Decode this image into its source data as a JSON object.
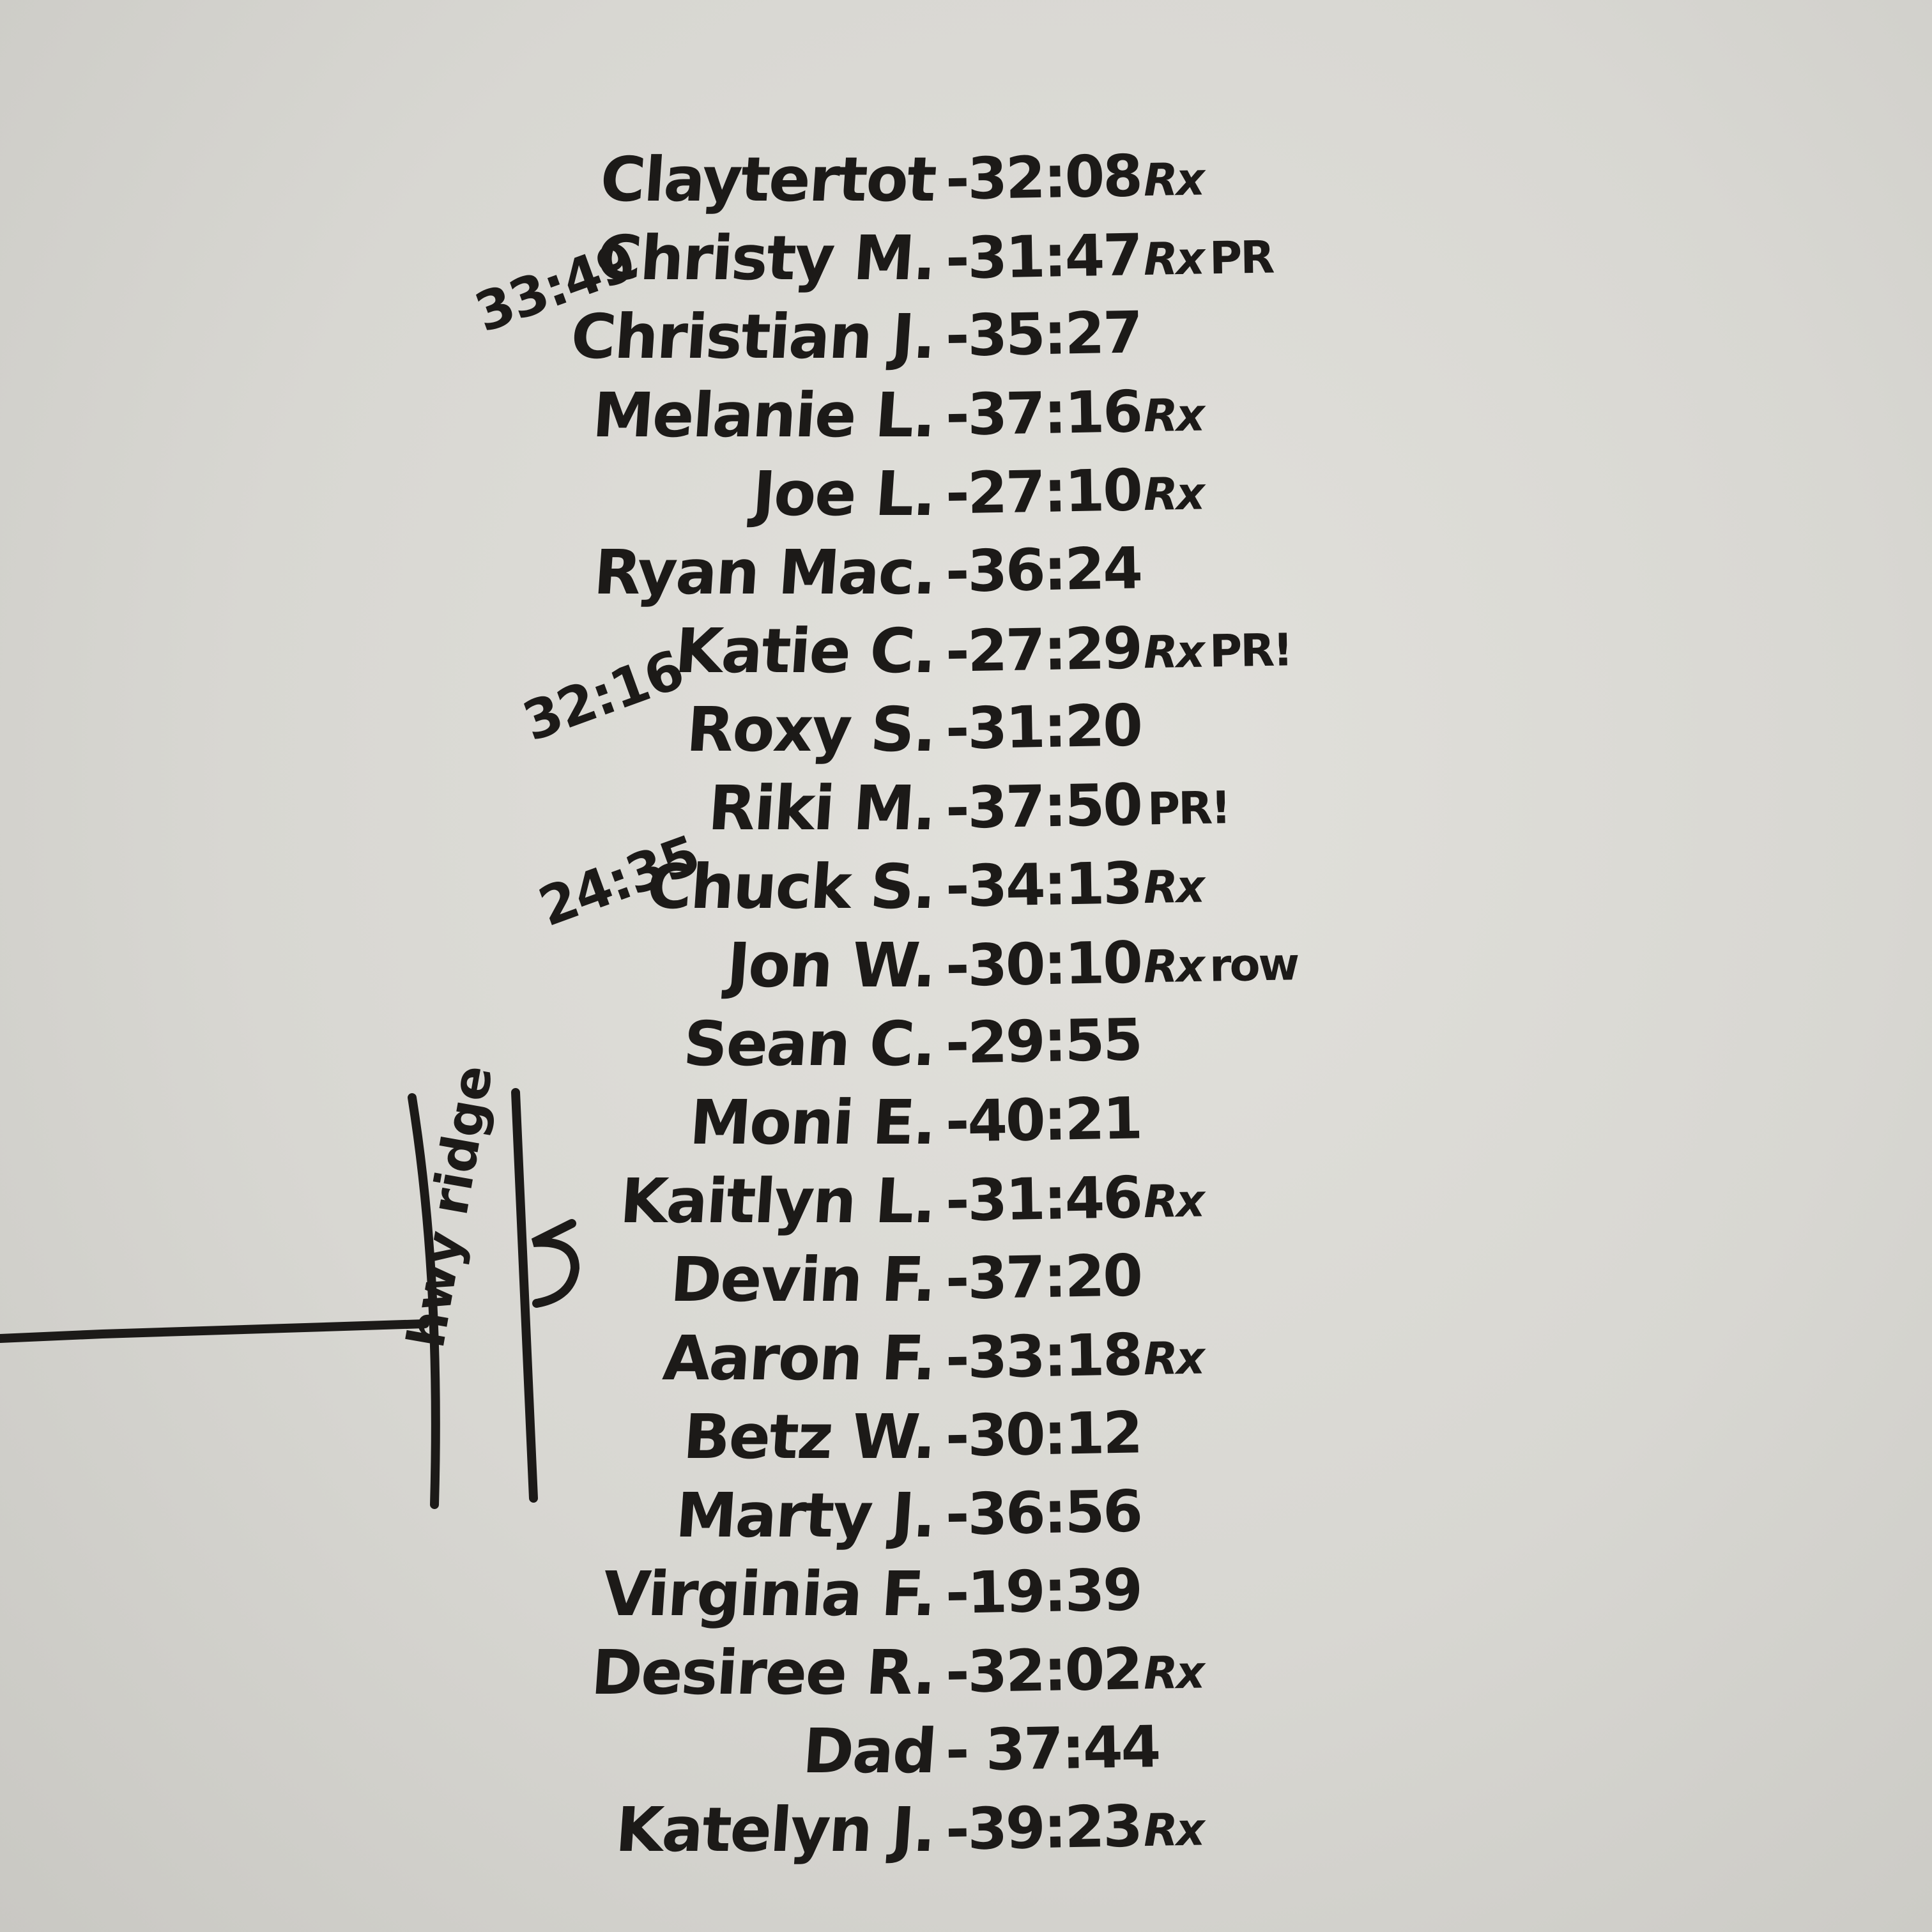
{
  "entries": [
    {
      "name": "Claytertot",
      "time": "-32:08",
      "rx": "Rx",
      "extra": ""
    },
    {
      "name": "Christy M.",
      "time": "-31:47",
      "rx": "Rx",
      "extra": "PR",
      "side_note": "33:49"
    },
    {
      "name": "Christian J.",
      "time": "-35:27",
      "rx": "",
      "extra": ""
    },
    {
      "name": "Melanie L.",
      "time": "-37:16",
      "rx": "Rx",
      "extra": ""
    },
    {
      "name": "Joe L.",
      "time": "-27:10",
      "rx": "Rx",
      "extra": ""
    },
    {
      "name": "Ryan Mac.",
      "time": "-36:24",
      "rx": "",
      "extra": ""
    },
    {
      "name": "Katie C.",
      "time": "-27:29",
      "rx": "Rx",
      "extra": "PR!",
      "side_note": "32:16"
    },
    {
      "name": "Roxy S.",
      "time": "-31:20",
      "rx": "",
      "extra": ""
    },
    {
      "name": "Riki M.",
      "time": "-37:50",
      "rx": "",
      "extra": "PR!",
      "side_note": "24:35"
    },
    {
      "name": "Chuck S.",
      "time": "-34:13",
      "rx": "Rx",
      "extra": ""
    },
    {
      "name": "Jon W.",
      "time": "-30:10",
      "rx": "Rx",
      "extra": "row"
    },
    {
      "name": "Sean C.",
      "time": "-29:55",
      "rx": "",
      "extra": ""
    },
    {
      "name": "Moni E.",
      "time": "-40:21",
      "rx": "",
      "extra": ""
    },
    {
      "name": "Kaitlyn L.",
      "time": "-31:46",
      "rx": "Rx",
      "extra": ""
    },
    {
      "name": "Devin F.",
      "time": "-37:20",
      "rx": "",
      "extra": ""
    },
    {
      "name": "Aaron F.",
      "time": "-33:18",
      "rx": "Rx",
      "extra": ""
    },
    {
      "name": "Betz W.",
      "time": "-30:12",
      "rx": "",
      "extra": ""
    },
    {
      "name": "Marty J.",
      "time": "-36:56",
      "rx": "",
      "extra": ""
    },
    {
      "name": "Virginia F.",
      "time": "-19:39",
      "rx": "",
      "extra": ""
    },
    {
      "name": "Desiree R.",
      "time": "-32:02",
      "rx": "Rx",
      "extra": ""
    },
    {
      "name": "Dad",
      "time": "- 37:44",
      "rx": "",
      "extra": ""
    },
    {
      "name": "Katelyn J.",
      "time": "-39:23",
      "rx": "Rx",
      "extra": ""
    }
  ],
  "sketch": {
    "label": "hwy ridge"
  },
  "colors": {
    "board": "#dcdbd6",
    "ink": "#1c1a18"
  }
}
